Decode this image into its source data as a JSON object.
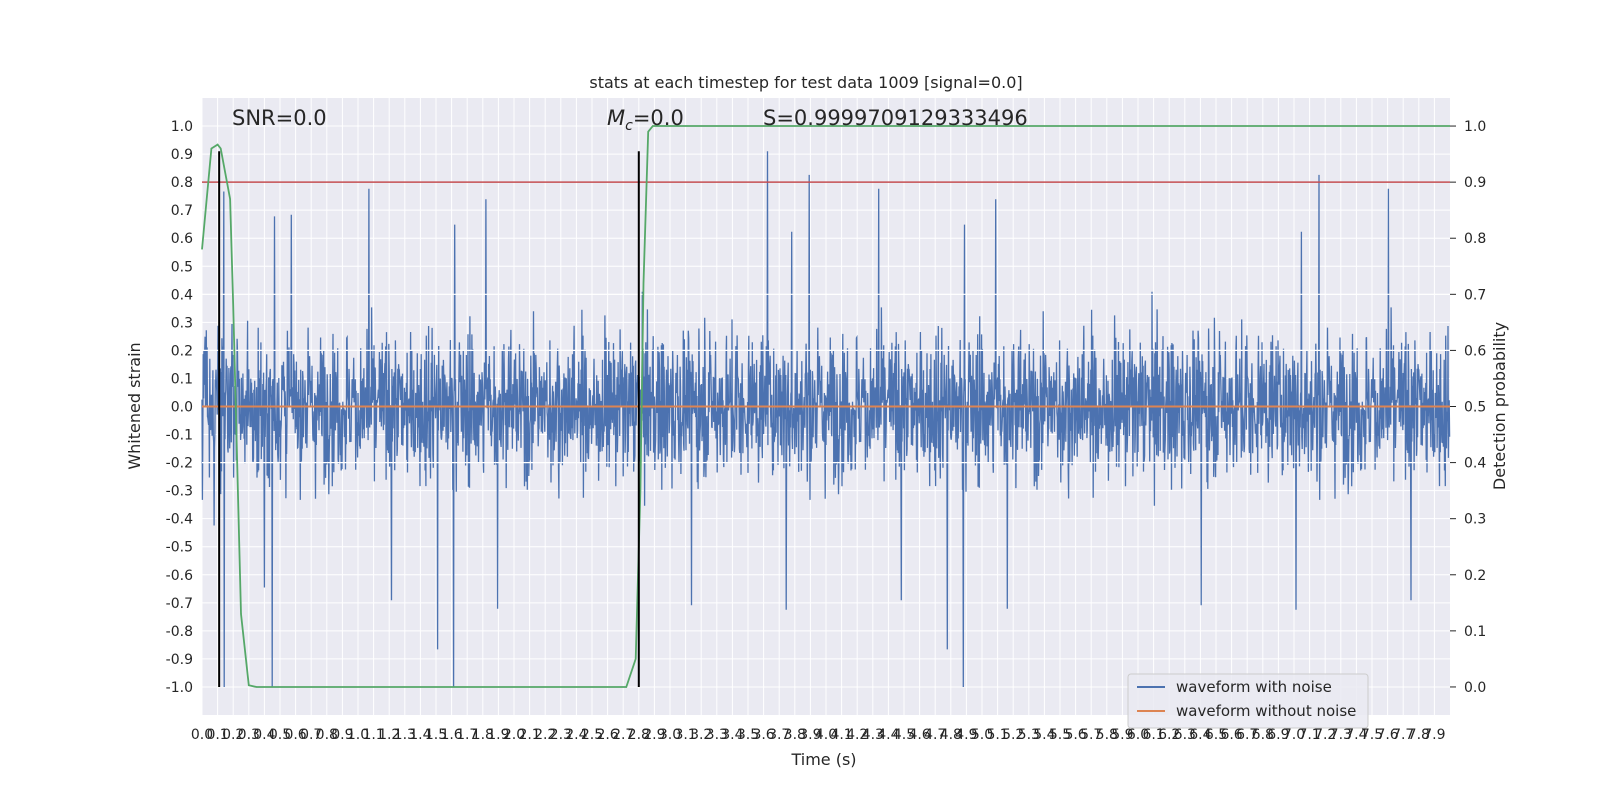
{
  "chart_data": {
    "type": "line",
    "title": "stats at each timestep for test data 1009 [signal=0.0]",
    "xlabel": "Time (s)",
    "ylabel": "Whitened strain",
    "y2label": "Detection probability",
    "xlim": [
      0.0,
      8.0
    ],
    "ylim": [
      -1.1,
      1.1
    ],
    "y2lim": [
      -0.05,
      1.05
    ],
    "grid": true,
    "x_tick_labels": [
      "0.0",
      "0.1",
      "0.2",
      "0.3",
      "0.4",
      "0.5",
      "0.6",
      "0.7",
      "0.8",
      "0.9",
      "1.0",
      "1.1",
      "1.2",
      "1.3",
      "1.4",
      "1.5",
      "1.6",
      "1.7",
      "1.8",
      "1.9",
      "2.0",
      "2.1",
      "2.2",
      "2.3",
      "2.4",
      "2.5",
      "2.6",
      "2.7",
      "2.8",
      "2.9",
      "3.0",
      "3.1",
      "3.2",
      "3.3",
      "3.4",
      "3.5",
      "3.6",
      "3.7",
      "3.8",
      "3.9",
      "4.0",
      "4.1",
      "4.2",
      "4.3",
      "4.4",
      "4.5",
      "4.6",
      "4.7",
      "4.8",
      "4.9",
      "5.0",
      "5.1",
      "5.2",
      "5.3",
      "5.4",
      "5.5",
      "5.6",
      "5.7",
      "5.8",
      "5.9",
      "6.0",
      "6.1",
      "6.2",
      "6.3",
      "6.4",
      "6.5",
      "6.6",
      "6.7",
      "6.8",
      "6.9",
      "7.0",
      "7.1",
      "7.2",
      "7.3",
      "7.4",
      "7.5",
      "7.6",
      "7.7",
      "7.8",
      "7.9"
    ],
    "y_tick_labels": [
      "1.0",
      "0.9",
      "0.8",
      "0.7",
      "0.6",
      "0.5",
      "0.4",
      "0.3",
      "0.2",
      "0.1",
      "0.0",
      "-0.1",
      "-0.2",
      "-0.3",
      "-0.4",
      "-0.5",
      "-0.6",
      "-0.7",
      "-0.8",
      "-0.9",
      "-1.0"
    ],
    "y2_tick_labels": [
      "1.0",
      "0.9",
      "0.8",
      "0.7",
      "0.6",
      "0.5",
      "0.4",
      "0.3",
      "0.2",
      "0.1",
      "0.0"
    ],
    "annotations": {
      "snr": "SNR=0.0",
      "mc": "=0.0",
      "mc_symbol": "M",
      "mc_subscript": "c",
      "s": "S=0.9999709129333496"
    },
    "legend": {
      "position": "lower-right",
      "entries": [
        {
          "label": "waveform with noise",
          "color": "#4c72b0"
        },
        {
          "label": "waveform without noise",
          "color": "#dd8452"
        }
      ]
    },
    "series": [
      {
        "name": "waveform with noise",
        "axis": "left",
        "color": "#4c72b0",
        "kind": "noise",
        "duration_s": 8.0,
        "typical_peak": 0.6,
        "max": 0.91,
        "min": -1.0
      },
      {
        "name": "waveform without noise",
        "axis": "left",
        "color": "#dd8452",
        "x": [
          0.0,
          8.0
        ],
        "y": [
          0.0,
          0.0
        ]
      },
      {
        "name": "threshold",
        "axis": "right",
        "color": "#c44e52",
        "x": [
          0.0,
          8.0
        ],
        "y": [
          0.9,
          0.9
        ]
      },
      {
        "name": "detection probability",
        "axis": "right",
        "color": "#55a868",
        "x": [
          0.0,
          0.06,
          0.1,
          0.12,
          0.18,
          0.2,
          0.25,
          0.3,
          0.35,
          0.4,
          2.6,
          2.72,
          2.78,
          2.81,
          2.83,
          2.86,
          2.89,
          3.0,
          8.0
        ],
        "y": [
          0.78,
          0.96,
          0.967,
          0.96,
          0.87,
          0.68,
          0.13,
          0.003,
          0.0,
          0.0,
          0.0,
          0.0,
          0.05,
          0.35,
          0.72,
          0.99,
          1.0,
          1.0,
          1.0
        ]
      }
    ],
    "vlines": [
      {
        "x": 0.11,
        "ymin": -1.0,
        "ymax": 0.91
      },
      {
        "x": 2.8,
        "ymin": -1.0,
        "ymax": 0.91
      }
    ],
    "horizontal_white_lines_y2": [
      0.7,
      0.6,
      0.5,
      0.4
    ]
  }
}
